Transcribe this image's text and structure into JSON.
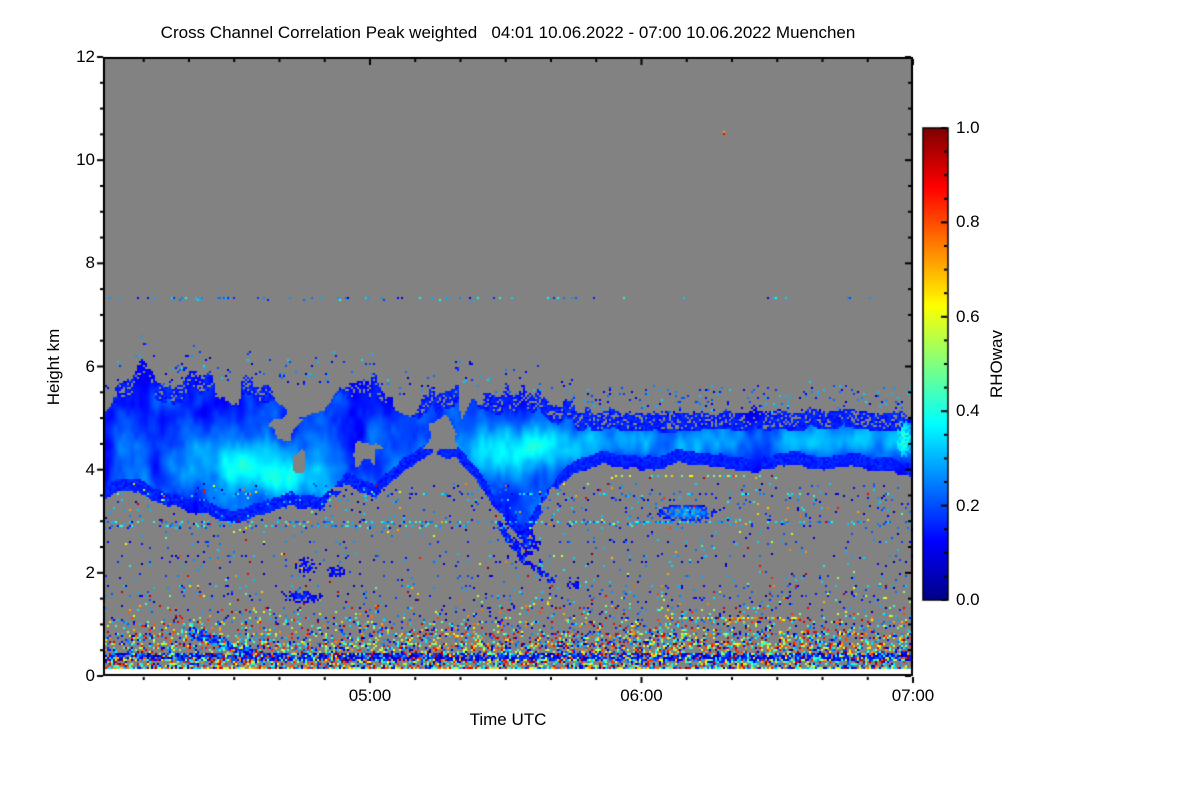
{
  "chart_data": {
    "type": "heatmap",
    "title": "Cross Channel Correlation Peak weighted   04:01 10.06.2022 - 07:00 10.06.2022 Muenchen",
    "title_parts": {
      "quantity": "Cross Channel Correlation Peak weighted",
      "time_start": "04:01 10.06.2022",
      "time_end": "07:00 10.06.2022",
      "station": "Muenchen"
    },
    "xlabel": "Time UTC",
    "ylabel": "Height km",
    "x_total_minutes": 179,
    "xticks": [
      {
        "label": "05:00",
        "minute": 59
      },
      {
        "label": "06:00",
        "minute": 119
      },
      {
        "label": "07:00",
        "minute": 179
      }
    ],
    "x_minor_every_minutes": 10,
    "ylim": [
      0,
      12
    ],
    "yticks": [
      {
        "label": "12",
        "value": 12
      },
      {
        "label": "10",
        "value": 10
      },
      {
        "label": "8",
        "value": 8
      },
      {
        "label": "6",
        "value": 6
      },
      {
        "label": "4",
        "value": 4
      },
      {
        "label": "2",
        "value": 2
      },
      {
        "label": "0",
        "value": 0
      }
    ],
    "y_minor_every": 0.5,
    "colorbar": {
      "label": "RHOwav",
      "min": 0.0,
      "max": 1.0,
      "ticks": [
        {
          "label": "1.0",
          "value": 1.0
        },
        {
          "label": "0.8",
          "value": 0.8
        },
        {
          "label": "0.6",
          "value": 0.6
        },
        {
          "label": "0.4",
          "value": 0.4
        },
        {
          "label": "0.2",
          "value": 0.2
        },
        {
          "label": "0.0",
          "value": 0.0
        }
      ],
      "minor_every": 0.05,
      "colormap": "jet",
      "stops": [
        {
          "pos": 0.0,
          "rgb": [
            0,
            0,
            131
          ]
        },
        {
          "pos": 0.125,
          "rgb": [
            0,
            0,
            255
          ]
        },
        {
          "pos": 0.375,
          "rgb": [
            0,
            255,
            255
          ]
        },
        {
          "pos": 0.625,
          "rgb": [
            255,
            255,
            0
          ]
        },
        {
          "pos": 0.875,
          "rgb": [
            255,
            0,
            0
          ]
        },
        {
          "pos": 1.0,
          "rgb": [
            128,
            0,
            0
          ]
        }
      ]
    },
    "no_data_color": "#828282",
    "data_bottom_gap_km": 0.13,
    "cloud_band": {
      "top_pts": [
        [
          0,
          5.5
        ],
        [
          8,
          5.85
        ],
        [
          15,
          5.6
        ],
        [
          22,
          5.8
        ],
        [
          30,
          5.55
        ],
        [
          38,
          5.7
        ],
        [
          45,
          5.5
        ],
        [
          52,
          5.65
        ],
        [
          58,
          5.75
        ],
        [
          64,
          5.5
        ],
        [
          70,
          5.35
        ],
        [
          76,
          5.55
        ],
        [
          82,
          5.6
        ],
        [
          88,
          5.4
        ],
        [
          94,
          5.5
        ],
        [
          100,
          5.25
        ],
        [
          106,
          5.1
        ],
        [
          115,
          5.12
        ],
        [
          125,
          5.08
        ],
        [
          135,
          5.15
        ],
        [
          145,
          5.1
        ],
        [
          155,
          5.12
        ],
        [
          165,
          5.18
        ],
        [
          172,
          5.1
        ],
        [
          179,
          5.15
        ]
      ],
      "bot_pts": [
        [
          0,
          3.45
        ],
        [
          8,
          3.6
        ],
        [
          14,
          3.3
        ],
        [
          20,
          3.2
        ],
        [
          28,
          3.0
        ],
        [
          36,
          3.1
        ],
        [
          42,
          3.35
        ],
        [
          48,
          3.2
        ],
        [
          54,
          3.7
        ],
        [
          60,
          3.5
        ],
        [
          66,
          3.9
        ],
        [
          72,
          4.3
        ],
        [
          78,
          4.25
        ],
        [
          84,
          3.6
        ],
        [
          88,
          3.15
        ],
        [
          93,
          2.62
        ],
        [
          97,
          3.2
        ],
        [
          101,
          3.75
        ],
        [
          106,
          4.0
        ],
        [
          112,
          4.1
        ],
        [
          120,
          4.05
        ],
        [
          128,
          4.12
        ],
        [
          136,
          4.05
        ],
        [
          144,
          4.0
        ],
        [
          152,
          4.08
        ],
        [
          160,
          4.02
        ],
        [
          168,
          4.05
        ],
        [
          174,
          3.98
        ],
        [
          179,
          3.9
        ]
      ],
      "spike_amp_left": 0.5,
      "spike_amp_right": 0.22,
      "value_base": 0.07,
      "value_noise_amp": 0.22,
      "cores": [
        {
          "t": 30,
          "h": 4.1,
          "rt": 16,
          "rh": 0.5,
          "amp": 0.16
        },
        {
          "t": 43,
          "h": 3.8,
          "rt": 8,
          "rh": 0.35,
          "amp": 0.12
        },
        {
          "t": 88,
          "h": 4.3,
          "rt": 14,
          "rh": 0.55,
          "amp": 0.17
        },
        {
          "t": 100,
          "h": 4.5,
          "rt": 10,
          "rh": 0.4,
          "amp": 0.1
        },
        {
          "t": 130,
          "h": 4.55,
          "rt": 18,
          "rh": 0.35,
          "amp": 0.1
        },
        {
          "t": 160,
          "h": 4.6,
          "rt": 14,
          "rh": 0.3,
          "amp": 0.11
        },
        {
          "t": 176,
          "h": 4.6,
          "rt": 4,
          "rh": 0.35,
          "amp": 0.15
        }
      ]
    },
    "dotted_rows": [
      {
        "h": 7.35,
        "t0": 0,
        "t1": 105,
        "p": 0.22,
        "v0": 0.08,
        "v1": 0.4,
        "warm": 0.0
      },
      {
        "h": 7.35,
        "t0": 105,
        "t1": 179,
        "p": 0.06,
        "v0": 0.08,
        "v1": 0.4,
        "warm": 0.0
      },
      {
        "h": 3.88,
        "t0": 112,
        "t1": 152,
        "p": 0.3,
        "v0": 0.25,
        "v1": 0.7,
        "warm": 0.35
      },
      {
        "h": 3.55,
        "t0": 0,
        "t1": 179,
        "p": 0.16,
        "v0": 0.08,
        "v1": 0.45,
        "warm": 0.04
      },
      {
        "h": 3.42,
        "t0": 0,
        "t1": 179,
        "p": 0.1,
        "v0": 0.08,
        "v1": 0.4,
        "warm": 0.03
      },
      {
        "h": 3.28,
        "t0": 95,
        "t1": 179,
        "p": 0.12,
        "v0": 0.1,
        "v1": 0.4,
        "warm": 0.05
      },
      {
        "h": 3.0,
        "t0": 0,
        "t1": 179,
        "p": 0.38,
        "v0": 0.15,
        "v1": 0.45,
        "warm": 0.03
      },
      {
        "h": 2.92,
        "t0": 0,
        "t1": 90,
        "p": 0.3,
        "v0": 0.1,
        "v1": 0.45,
        "warm": 0.02
      },
      {
        "h": 2.6,
        "t0": 0,
        "t1": 179,
        "p": 0.1,
        "v0": 0.05,
        "v1": 0.3,
        "warm": 0.02
      },
      {
        "h": 2.35,
        "t0": 0,
        "t1": 179,
        "p": 0.12,
        "v0": 0.05,
        "v1": 0.35,
        "warm": 0.03
      },
      {
        "h": 2.22,
        "t0": 0,
        "t1": 110,
        "p": 0.09,
        "v0": 0.05,
        "v1": 0.3,
        "warm": 0.02
      },
      {
        "h": 1.95,
        "t0": 0,
        "t1": 179,
        "p": 0.09,
        "v0": 0.05,
        "v1": 0.3,
        "warm": 0.04
      },
      {
        "h": 1.75,
        "t0": 0,
        "t1": 179,
        "p": 0.11,
        "v0": 0.05,
        "v1": 0.35,
        "warm": 0.1
      },
      {
        "h": 1.55,
        "t0": 0,
        "t1": 179,
        "p": 0.09,
        "v0": 0.05,
        "v1": 0.3,
        "warm": 0.06
      },
      {
        "h": 1.3,
        "t0": 0,
        "t1": 120,
        "p": 0.07,
        "v0": 0.05,
        "v1": 0.3,
        "warm": 0.05
      },
      {
        "h": 1.15,
        "t0": 124,
        "t1": 154,
        "p": 0.7,
        "v0": 0.3,
        "v1": 0.95,
        "warm": 0.65
      },
      {
        "h": 1.15,
        "t0": 30,
        "t1": 60,
        "p": 0.3,
        "v0": 0.1,
        "v1": 0.5,
        "warm": 0.2
      }
    ],
    "surface_stripe": {
      "h0": 0.31,
      "h1": 0.44,
      "p": 0.85,
      "v0": 0.04,
      "v1": 0.22
    },
    "surface_layers": [
      {
        "h0": 0.06,
        "h1": 0.17,
        "p": 0.8,
        "warm": 0.45,
        "cool": 0.3
      },
      {
        "h0": 0.17,
        "h1": 0.31,
        "p": 0.5,
        "warm": 0.42,
        "cool": 0.33
      },
      {
        "h0": 0.31,
        "h1": 0.44,
        "p": 0.3,
        "warm": 0.4,
        "cool": 0.4
      },
      {
        "h0": 0.44,
        "h1": 0.62,
        "p": 0.38,
        "warm": 0.42,
        "cool": 0.35
      },
      {
        "h0": 0.62,
        "h1": 0.85,
        "p": 0.28,
        "warm": 0.4,
        "cool": 0.38
      },
      {
        "h0": 0.85,
        "h1": 1.05,
        "p": 0.16,
        "warm": 0.38,
        "cool": 0.42
      },
      {
        "h0": 1.05,
        "h1": 1.35,
        "p": 0.08,
        "warm": 0.3,
        "cool": 0.55
      },
      {
        "h0": 1.35,
        "h1": 1.65,
        "p": 0.045,
        "warm": 0.25,
        "cool": 0.6
      },
      {
        "h0": 1.65,
        "h1": 2.9,
        "p": 0.018,
        "warm": 0.15,
        "cool": 0.8
      },
      {
        "h0": 2.9,
        "h1": 3.75,
        "p": 0.035,
        "warm": 0.12,
        "cool": 0.85
      }
    ],
    "blobs": [
      {
        "t": 129,
        "h": 3.18,
        "rt": 6.5,
        "rh": 0.17,
        "p": 0.95,
        "v0": 0.12,
        "v1": 0.34
      },
      {
        "t": 93.5,
        "h": 2.6,
        "rt": 3.2,
        "rh": 0.28,
        "p": 0.75,
        "v0": 0.08,
        "v1": 0.2
      },
      {
        "t": 44,
        "h": 1.55,
        "rt": 4.5,
        "rh": 0.13,
        "p": 0.7,
        "v0": 0.08,
        "v1": 0.2
      },
      {
        "t": 45,
        "h": 2.15,
        "rt": 2.6,
        "rh": 0.16,
        "p": 0.6,
        "v0": 0.08,
        "v1": 0.18
      },
      {
        "t": 51.5,
        "h": 2.05,
        "rt": 2.2,
        "rh": 0.13,
        "p": 0.6,
        "v0": 0.08,
        "v1": 0.18
      },
      {
        "t": 104,
        "h": 1.78,
        "rt": 1.6,
        "rh": 0.09,
        "p": 0.8,
        "v0": 0.08,
        "v1": 0.18
      },
      {
        "t": 177,
        "h": 4.6,
        "rt": 2.0,
        "rh": 0.35,
        "p": 0.9,
        "v0": 0.3,
        "v1": 0.45
      },
      {
        "t": 21,
        "h": 0.85,
        "rt": 2.2,
        "rh": 0.12,
        "p": 0.7,
        "v0": 0.1,
        "v1": 0.25
      }
    ],
    "streaks": [
      {
        "t0": 19,
        "h0": 0.9,
        "t1": 33,
        "h1": 0.46,
        "w": 0.09,
        "p": 0.85,
        "v0": 0.08,
        "v1": 0.28
      },
      {
        "t0": 87.5,
        "h0": 2.95,
        "t1": 93,
        "h1": 2.28,
        "w": 0.07,
        "p": 0.8,
        "v0": 0.08,
        "v1": 0.2
      },
      {
        "t0": 93,
        "h0": 2.28,
        "t1": 99.5,
        "h1": 1.86,
        "w": 0.05,
        "p": 0.7,
        "v0": 0.08,
        "v1": 0.2
      }
    ],
    "isolated_specks": [
      {
        "t": 137.3,
        "h": 10.56,
        "values": [
          0.72,
          0.88
        ]
      }
    ],
    "fringe": {
      "p_left": 0.045,
      "p_right": 0.08,
      "extent_km": 0.5
    }
  }
}
